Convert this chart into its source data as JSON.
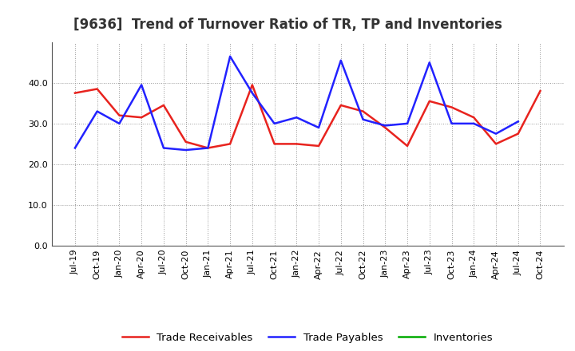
{
  "title": "[9636]  Trend of Turnover Ratio of TR, TP and Inventories",
  "x_labels": [
    "Jul-19",
    "Oct-19",
    "Jan-20",
    "Apr-20",
    "Jul-20",
    "Oct-20",
    "Jan-21",
    "Apr-21",
    "Jul-21",
    "Oct-21",
    "Jan-22",
    "Apr-22",
    "Jul-22",
    "Oct-22",
    "Jan-23",
    "Apr-23",
    "Jul-23",
    "Oct-23",
    "Jan-24",
    "Apr-24",
    "Jul-24",
    "Oct-24"
  ],
  "trade_receivables": [
    37.5,
    38.5,
    32.0,
    31.5,
    34.5,
    25.5,
    24.0,
    25.0,
    39.5,
    25.0,
    25.0,
    24.5,
    34.5,
    33.0,
    29.0,
    24.5,
    35.5,
    34.0,
    31.5,
    25.0,
    27.5,
    38.0
  ],
  "trade_payables": [
    24.0,
    33.0,
    30.0,
    39.5,
    24.0,
    23.5,
    24.0,
    46.5,
    37.5,
    30.0,
    31.5,
    29.0,
    45.5,
    31.0,
    29.5,
    30.0,
    45.0,
    30.0,
    30.0,
    27.5,
    30.5,
    null
  ],
  "inventories": [
    null,
    null,
    null,
    null,
    null,
    null,
    null,
    null,
    null,
    null,
    null,
    null,
    null,
    null,
    null,
    null,
    null,
    null,
    null,
    null,
    null,
    null
  ],
  "tr_color": "#e8231e",
  "tp_color": "#2222ff",
  "inv_color": "#00aa00",
  "background_color": "#ffffff",
  "plot_bg_color": "#ffffff",
  "ylim": [
    0,
    50
  ],
  "yticks": [
    0.0,
    10.0,
    20.0,
    30.0,
    40.0
  ],
  "grid_color": "#999999",
  "title_fontsize": 12,
  "legend_fontsize": 9.5,
  "tick_fontsize": 8
}
